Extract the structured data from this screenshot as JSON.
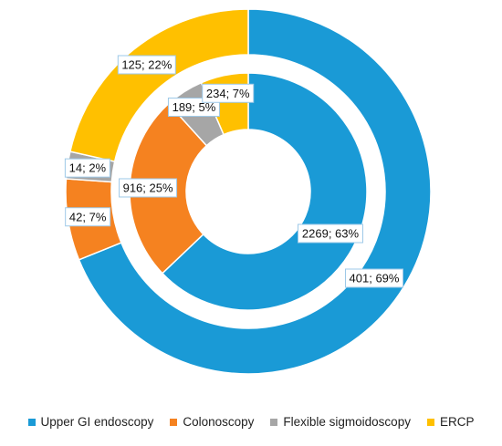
{
  "chart_data": {
    "type": "pie",
    "subtype": "nested-donut",
    "categories": [
      "Upper GI endoscopy",
      "Colonoscopy",
      "Flexible sigmoidoscopy",
      "ERCP"
    ],
    "colors": [
      "#1a9ad6",
      "#f58220",
      "#a6a6a6",
      "#ffc000"
    ],
    "series": [
      {
        "ring": "outer",
        "values": [
          401,
          42,
          14,
          125
        ],
        "labels": [
          "401; 69%",
          "42; 7%",
          "14; 2%",
          "125; 22%"
        ]
      },
      {
        "ring": "inner",
        "values": [
          2269,
          916,
          189,
          234
        ],
        "labels": [
          "2269; 63%",
          "916; 25%",
          "189; 5%",
          "234; 7%"
        ]
      }
    ],
    "legend_position": "bottom"
  }
}
